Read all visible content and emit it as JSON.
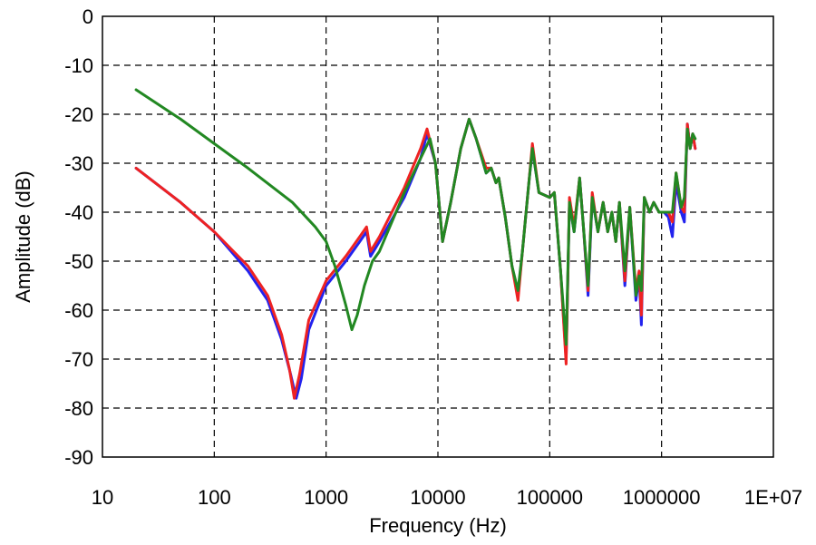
{
  "chart_data": {
    "type": "line",
    "xlabel": "Frequency (Hz)",
    "ylabel": "Amplitude (dB)",
    "xscale": "log",
    "xlim": [
      10,
      10000000
    ],
    "ylim": [
      -90,
      0
    ],
    "x_ticks": [
      10,
      100,
      1000,
      10000,
      100000,
      1000000,
      10000000
    ],
    "x_tick_labels": [
      "10",
      "100",
      "1000",
      "10000",
      "100000",
      "1000000",
      "1E+07"
    ],
    "y_ticks": [
      0,
      -10,
      -20,
      -30,
      -40,
      -50,
      -60,
      -70,
      -80,
      -90
    ],
    "y_tick_labels": [
      "0",
      "-10",
      "-20",
      "-30",
      "-40",
      "-50",
      "-60",
      "-70",
      "-80",
      "-90"
    ],
    "grid": true,
    "series": [
      {
        "color": "#2222ee",
        "points": [
          [
            20,
            -31
          ],
          [
            50,
            -38
          ],
          [
            100,
            -44
          ],
          [
            200,
            -52
          ],
          [
            300,
            -58
          ],
          [
            400,
            -66
          ],
          [
            480,
            -73
          ],
          [
            540,
            -78
          ],
          [
            600,
            -74
          ],
          [
            700,
            -64
          ],
          [
            1000,
            -55
          ],
          [
            1500,
            -50
          ],
          [
            2000,
            -46
          ],
          [
            2300,
            -44
          ],
          [
            2500,
            -49
          ],
          [
            3000,
            -46
          ],
          [
            5000,
            -37
          ],
          [
            7000,
            -29
          ],
          [
            8000,
            -24
          ],
          [
            9500,
            -30
          ],
          [
            11000,
            -46
          ],
          [
            13000,
            -38
          ],
          [
            16000,
            -27
          ],
          [
            19000,
            -21
          ],
          [
            22000,
            -25
          ],
          [
            27000,
            -32
          ],
          [
            30000,
            -31
          ],
          [
            33000,
            -34
          ],
          [
            35000,
            -33
          ],
          [
            40000,
            -41
          ],
          [
            46000,
            -51
          ],
          [
            52000,
            -57
          ],
          [
            57000,
            -48
          ],
          [
            65000,
            -34
          ],
          [
            70000,
            -27
          ],
          [
            80000,
            -36
          ],
          [
            100000,
            -37
          ],
          [
            110000,
            -36
          ],
          [
            125000,
            -52
          ],
          [
            140000,
            -70
          ],
          [
            150000,
            -38
          ],
          [
            165000,
            -44
          ],
          [
            185000,
            -33
          ],
          [
            200000,
            -43
          ],
          [
            220000,
            -57
          ],
          [
            240000,
            -37
          ],
          [
            270000,
            -44
          ],
          [
            300000,
            -38
          ],
          [
            330000,
            -44
          ],
          [
            360000,
            -40
          ],
          [
            390000,
            -46
          ],
          [
            420000,
            -38
          ],
          [
            470000,
            -55
          ],
          [
            520000,
            -39
          ],
          [
            590000,
            -58
          ],
          [
            630000,
            -53
          ],
          [
            660000,
            -63
          ],
          [
            700000,
            -37
          ],
          [
            780000,
            -40
          ],
          [
            850000,
            -38
          ],
          [
            950000,
            -40
          ],
          [
            1050000,
            -40
          ],
          [
            1150000,
            -41
          ],
          [
            1250000,
            -45
          ],
          [
            1350000,
            -34
          ],
          [
            1500000,
            -40
          ],
          [
            1600000,
            -42
          ],
          [
            1700000,
            -22
          ],
          [
            1800000,
            -27
          ],
          [
            1900000,
            -24
          ],
          [
            2000000,
            -27
          ]
        ]
      },
      {
        "color": "#ee2222",
        "points": [
          [
            20,
            -31
          ],
          [
            50,
            -38
          ],
          [
            100,
            -44
          ],
          [
            200,
            -51
          ],
          [
            300,
            -57
          ],
          [
            400,
            -65
          ],
          [
            470,
            -72
          ],
          [
            520,
            -78
          ],
          [
            580,
            -73
          ],
          [
            700,
            -62
          ],
          [
            1000,
            -54
          ],
          [
            1500,
            -49
          ],
          [
            2000,
            -45
          ],
          [
            2300,
            -43
          ],
          [
            2500,
            -48
          ],
          [
            3000,
            -45
          ],
          [
            5000,
            -35
          ],
          [
            7000,
            -27
          ],
          [
            8000,
            -23
          ],
          [
            9500,
            -30
          ],
          [
            11000,
            -46
          ],
          [
            13000,
            -38
          ],
          [
            16000,
            -27
          ],
          [
            19000,
            -21
          ],
          [
            22000,
            -25
          ],
          [
            27000,
            -31
          ],
          [
            30000,
            -31
          ],
          [
            33000,
            -34
          ],
          [
            35000,
            -33
          ],
          [
            40000,
            -41
          ],
          [
            46000,
            -51
          ],
          [
            52000,
            -58
          ],
          [
            57000,
            -48
          ],
          [
            65000,
            -34
          ],
          [
            70000,
            -26
          ],
          [
            80000,
            -36
          ],
          [
            100000,
            -37
          ],
          [
            110000,
            -36
          ],
          [
            125000,
            -52
          ],
          [
            140000,
            -71
          ],
          [
            150000,
            -37
          ],
          [
            165000,
            -43
          ],
          [
            185000,
            -33
          ],
          [
            200000,
            -43
          ],
          [
            220000,
            -56
          ],
          [
            240000,
            -36
          ],
          [
            270000,
            -44
          ],
          [
            300000,
            -38
          ],
          [
            330000,
            -44
          ],
          [
            360000,
            -40
          ],
          [
            390000,
            -46
          ],
          [
            420000,
            -38
          ],
          [
            470000,
            -54
          ],
          [
            520000,
            -39
          ],
          [
            590000,
            -56
          ],
          [
            630000,
            -52
          ],
          [
            660000,
            -61
          ],
          [
            700000,
            -37
          ],
          [
            780000,
            -40
          ],
          [
            850000,
            -38
          ],
          [
            950000,
            -40
          ],
          [
            1050000,
            -40
          ],
          [
            1150000,
            -40
          ],
          [
            1250000,
            -42
          ],
          [
            1350000,
            -32
          ],
          [
            1500000,
            -39
          ],
          [
            1600000,
            -40
          ],
          [
            1700000,
            -22
          ],
          [
            1800000,
            -27
          ],
          [
            1900000,
            -24
          ],
          [
            2000000,
            -27
          ]
        ]
      },
      {
        "color": "#228822",
        "points": [
          [
            20,
            -15
          ],
          [
            50,
            -21
          ],
          [
            100,
            -26
          ],
          [
            200,
            -31
          ],
          [
            500,
            -38
          ],
          [
            800,
            -43
          ],
          [
            1000,
            -46
          ],
          [
            1200,
            -51
          ],
          [
            1500,
            -59
          ],
          [
            1700,
            -64
          ],
          [
            1900,
            -61
          ],
          [
            2200,
            -55
          ],
          [
            2600,
            -50
          ],
          [
            3000,
            -48
          ],
          [
            5000,
            -36
          ],
          [
            7000,
            -29
          ],
          [
            8500,
            -25
          ],
          [
            9500,
            -30
          ],
          [
            11000,
            -46
          ],
          [
            13000,
            -38
          ],
          [
            16000,
            -27
          ],
          [
            19000,
            -21
          ],
          [
            22000,
            -25
          ],
          [
            27000,
            -32
          ],
          [
            30000,
            -31
          ],
          [
            33000,
            -34
          ],
          [
            35000,
            -33
          ],
          [
            40000,
            -41
          ],
          [
            46000,
            -51
          ],
          [
            52000,
            -56
          ],
          [
            57000,
            -48
          ],
          [
            65000,
            -34
          ],
          [
            70000,
            -27
          ],
          [
            80000,
            -36
          ],
          [
            100000,
            -37
          ],
          [
            110000,
            -36
          ],
          [
            125000,
            -52
          ],
          [
            140000,
            -67
          ],
          [
            150000,
            -38
          ],
          [
            165000,
            -44
          ],
          [
            185000,
            -33
          ],
          [
            200000,
            -43
          ],
          [
            220000,
            -55
          ],
          [
            240000,
            -37
          ],
          [
            270000,
            -44
          ],
          [
            300000,
            -38
          ],
          [
            330000,
            -44
          ],
          [
            360000,
            -40
          ],
          [
            390000,
            -46
          ],
          [
            420000,
            -38
          ],
          [
            470000,
            -52
          ],
          [
            520000,
            -39
          ],
          [
            590000,
            -57
          ],
          [
            630000,
            -53
          ],
          [
            660000,
            -56
          ],
          [
            700000,
            -37
          ],
          [
            780000,
            -40
          ],
          [
            850000,
            -38
          ],
          [
            950000,
            -40
          ],
          [
            1050000,
            -40
          ],
          [
            1150000,
            -40
          ],
          [
            1250000,
            -40
          ],
          [
            1350000,
            -32
          ],
          [
            1500000,
            -39
          ],
          [
            1600000,
            -37
          ],
          [
            1700000,
            -23
          ],
          [
            1800000,
            -27
          ],
          [
            1900000,
            -24
          ],
          [
            2000000,
            -25
          ]
        ]
      }
    ]
  }
}
